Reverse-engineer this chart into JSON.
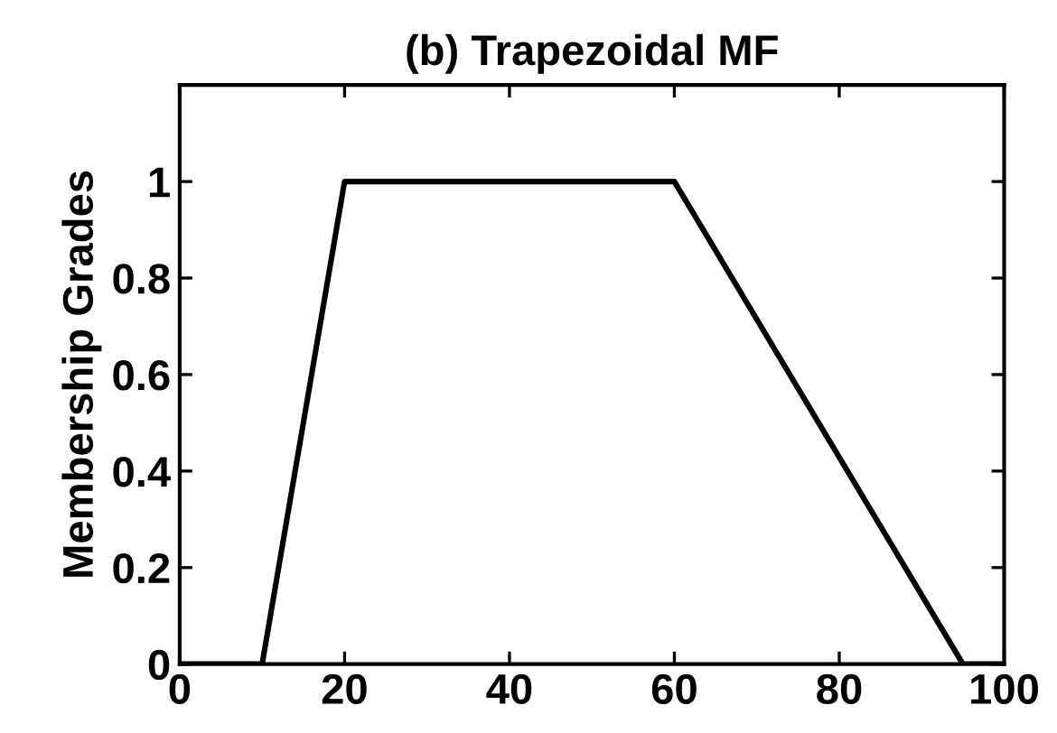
{
  "chart_data": {
    "type": "line",
    "title": "(b) Trapezoidal MF",
    "ylabel": "Membership Grades",
    "x": [
      0,
      10,
      20,
      60,
      95,
      100
    ],
    "series": [
      {
        "color": "#000000",
        "values": [
          0,
          0,
          1,
          1,
          0,
          0
        ]
      }
    ],
    "xlim": [
      0,
      100
    ],
    "ylim": [
      0,
      1.2
    ],
    "xticks": [
      0,
      20,
      40,
      60,
      80,
      100
    ],
    "yticks": [
      0,
      0.2,
      0.4,
      0.6,
      0.8,
      1
    ],
    "grid": false,
    "marker": "none",
    "line_style": "solid"
  }
}
